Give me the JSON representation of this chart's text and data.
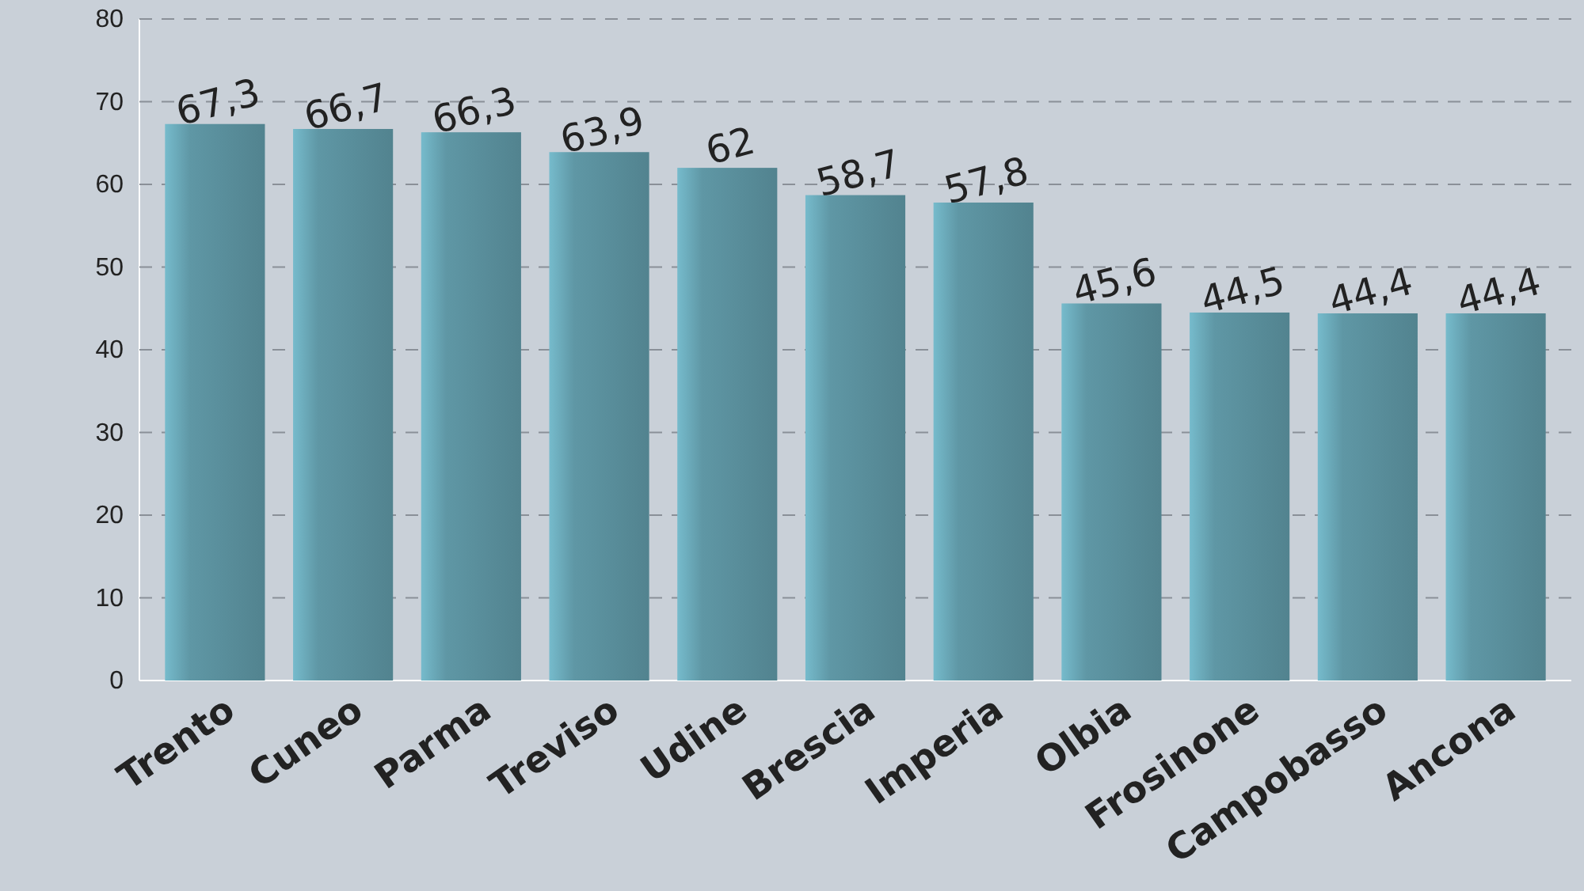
{
  "chart_data": {
    "type": "bar",
    "categories": [
      "Trento",
      "Cuneo",
      "Parma",
      "Treviso",
      "Udine",
      "Brescia",
      "Imperia",
      "Olbia",
      "Frosinone",
      "Campobasso",
      "Ancona"
    ],
    "values": [
      67.3,
      66.7,
      66.3,
      63.9,
      62,
      58.7,
      57.8,
      45.6,
      44.5,
      44.4,
      44.4
    ],
    "value_labels": [
      "67,3",
      "66,7",
      "66,3",
      "63,9",
      "62",
      "58,7",
      "57,8",
      "45,6",
      "44,5",
      "44,4",
      "44,4"
    ],
    "color": "#5f97a5",
    "ylim": [
      0,
      80
    ],
    "yticks": [
      0,
      10,
      20,
      30,
      40,
      50,
      60,
      70,
      80
    ],
    "grid": "y"
  }
}
